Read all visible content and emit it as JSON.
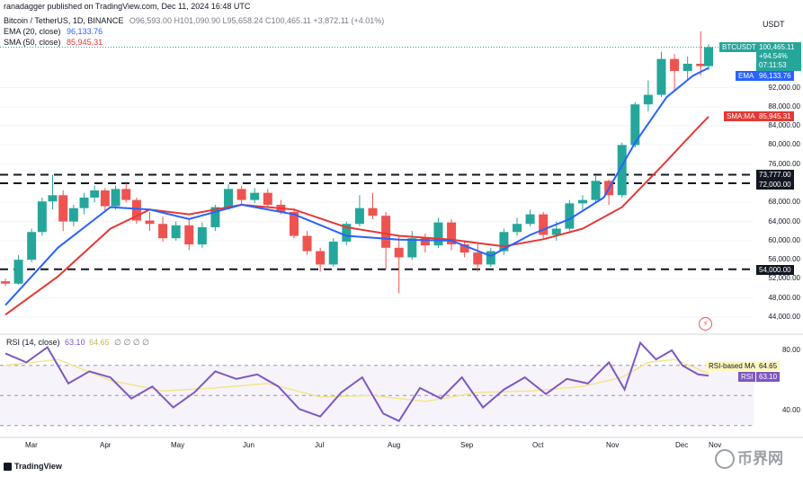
{
  "header": {
    "published": "ranadagger published on TradingView.com, Dec 11, 2024 16:48 UTC",
    "symbol": "Bitcoin / TetherUS, 1D, BINANCE",
    "ohlc": "O96,593.00 H101,090.90 L95,658.24 C100,465.11 +3,872.11 (+4.01%)",
    "ema_legend": "EMA (20, close)",
    "ema_value": "96,133.76",
    "sma_legend": "SMA (50, close)",
    "sma_value": "85,945.31",
    "rsi_legend": "RSI (14, close)",
    "rsi_value": "63.10",
    "rsi_ma_value": "64.65",
    "extra_icons": "∅ ∅ ∅ ∅"
  },
  "axis": {
    "currency": "USDT",
    "price_ticks": [
      "92,000.00",
      "88,000.00",
      "84,000.00",
      "80,000.00",
      "76,000.00",
      "68,000.00",
      "64,000.00",
      "60,000.00",
      "56,000.00",
      "52,000.00",
      "48,000.00",
      "44,000.00"
    ],
    "rsi_ticks": [
      "80.00",
      "40.00"
    ],
    "months": [
      "Mar",
      "Apr",
      "May",
      "Jun",
      "Jul",
      "Aug",
      "Sep",
      "Oct",
      "Nov",
      "Dec",
      "Nov"
    ]
  },
  "tags": {
    "price_symbol": "BTCUSDT",
    "price_value": "100,465.11",
    "price_change": "+94.54%",
    "countdown": "07:11:53",
    "ema_name": "EMA",
    "ema_value": "96,133.76",
    "sma_name": "SMA:MA",
    "sma_value": "85,945.31",
    "level_1": "73,777.00",
    "level_2": "72,000.00",
    "level_3": "54,000.00",
    "rsi_ma_name": "RSI-based MA",
    "rsi_ma_value": "64.65",
    "rsi_name": "RSI",
    "rsi_value": "63.10"
  },
  "footer": {
    "brand": "TradingView",
    "watermark": "币界网"
  },
  "colors": {
    "up": "#26a69a",
    "down": "#ef5350",
    "ema": "#2962ff",
    "sma": "#e53935",
    "rsi": "#7e57c2",
    "rsi_ma": "#f4e58b",
    "level": "#131722",
    "price_tag": "#26a69a"
  },
  "chart_data": [
    {
      "type": "line",
      "title": "Bitcoin / TetherUS, 1D, BINANCE",
      "x": [
        "Mar",
        "Apr",
        "May",
        "Jun",
        "Jul",
        "Aug",
        "Sep",
        "Oct",
        "Nov",
        "Dec"
      ],
      "y_axis": {
        "min": 44000,
        "max": 104000,
        "scale": "linear",
        "unit": "USDT"
      },
      "horizontal_levels": [
        73777,
        72000,
        54000
      ],
      "series": [
        {
          "name": "BTCUSDT",
          "style": "candles",
          "values": [
            [
              0,
              51500,
              52000,
              50500,
              51000
            ],
            [
              5,
              51000,
              57000,
              50800,
              56000
            ],
            [
              10,
              56000,
              62500,
              55500,
              61800
            ],
            [
              14,
              61800,
              69000,
              61000,
              68200
            ],
            [
              18,
              68200,
              73777,
              66500,
              69500
            ],
            [
              22,
              69500,
              70500,
              62000,
              64000
            ],
            [
              26,
              64000,
              67500,
              63000,
              66800
            ],
            [
              30,
              66800,
              70000,
              65500,
              69000
            ],
            [
              34,
              69000,
              71500,
              68000,
              70500
            ],
            [
              38,
              70500,
              71000,
              66000,
              67200
            ],
            [
              42,
              67200,
              71500,
              66500,
              70800
            ],
            [
              46,
              70800,
              72000,
              68000,
              68500
            ],
            [
              50,
              68500,
              69000,
              63500,
              64200
            ],
            [
              55,
              64200,
              66000,
              62000,
              63500
            ],
            [
              60,
              63500,
              65000,
              59800,
              60500
            ],
            [
              65,
              60500,
              64000,
              60000,
              63200
            ],
            [
              70,
              63200,
              64500,
              58000,
              59200
            ],
            [
              75,
              59200,
              63800,
              58500,
              62800
            ],
            [
              80,
              62800,
              67500,
              62000,
              67000
            ],
            [
              85,
              67000,
              71800,
              66500,
              70800
            ],
            [
              90,
              70800,
              71500,
              67500,
              68500
            ],
            [
              95,
              68500,
              71000,
              67800,
              70000
            ],
            [
              100,
              70000,
              70800,
              67000,
              67500
            ],
            [
              105,
              67500,
              68500,
              65500,
              66000
            ],
            [
              110,
              66000,
              66800,
              60500,
              61000
            ],
            [
              115,
              61000,
              62000,
              57000,
              57800
            ],
            [
              120,
              57800,
              58500,
              53500,
              55000
            ],
            [
              125,
              55000,
              60500,
              54500,
              59800
            ],
            [
              130,
              59800,
              64000,
              59000,
              63500
            ],
            [
              135,
              63500,
              69500,
              63000,
              66800
            ],
            [
              140,
              66800,
              70000,
              64500,
              65200
            ],
            [
              145,
              65200,
              66000,
              54000,
              58500
            ],
            [
              150,
              58500,
              61000,
              49000,
              56500
            ],
            [
              155,
              56500,
              62000,
              56000,
              60500
            ],
            [
              160,
              60500,
              61500,
              57500,
              59000
            ],
            [
              165,
              59000,
              64800,
              58500,
              63800
            ],
            [
              170,
              63800,
              64500,
              58000,
              59200
            ],
            [
              175,
              59200,
              59800,
              56500,
              57500
            ],
            [
              180,
              57500,
              59500,
              53500,
              55000
            ],
            [
              185,
              55000,
              58500,
              54500,
              57800
            ],
            [
              190,
              57800,
              62500,
              57000,
              61800
            ],
            [
              195,
              61800,
              64800,
              61000,
              63500
            ],
            [
              200,
              63500,
              66500,
              63000,
              65500
            ],
            [
              205,
              65500,
              66000,
              60500,
              61200
            ],
            [
              210,
              61200,
              64000,
              60000,
              62500
            ],
            [
              215,
              62500,
              68500,
              62000,
              67800
            ],
            [
              220,
              67800,
              69500,
              66500,
              68500
            ],
            [
              225,
              68500,
              73500,
              67800,
              72500
            ],
            [
              230,
              72500,
              72800,
              67500,
              69500
            ],
            [
              235,
              69500,
              80500,
              69000,
              80000
            ],
            [
              240,
              80000,
              89000,
              79500,
              88500
            ],
            [
              245,
              88500,
              93500,
              87000,
              90500
            ],
            [
              250,
              90500,
              99500,
              90000,
              98000
            ],
            [
              255,
              98000,
              99000,
              91500,
              95500
            ],
            [
              260,
              95500,
              98500,
              93500,
              97000
            ],
            [
              265,
              97000,
              103800,
              94500,
              96500
            ],
            [
              268,
              96500,
              101090,
              95658,
              100465
            ]
          ]
        },
        {
          "name": "EMA",
          "values": [
            [
              0,
              46500
            ],
            [
              20,
              58500
            ],
            [
              40,
              67000
            ],
            [
              55,
              66500
            ],
            [
              70,
              64500
            ],
            [
              90,
              67500
            ],
            [
              110,
              65500
            ],
            [
              130,
              61000
            ],
            [
              150,
              60200
            ],
            [
              170,
              60000
            ],
            [
              185,
              56800
            ],
            [
              200,
              61200
            ],
            [
              215,
              64500
            ],
            [
              228,
              69000
            ],
            [
              240,
              80500
            ],
            [
              252,
              90000
            ],
            [
              262,
              94500
            ],
            [
              268,
              96133
            ]
          ]
        },
        {
          "name": "SMA",
          "values": [
            [
              0,
              44500
            ],
            [
              20,
              52500
            ],
            [
              40,
              62500
            ],
            [
              55,
              66500
            ],
            [
              70,
              65500
            ],
            [
              90,
              67500
            ],
            [
              110,
              66500
            ],
            [
              130,
              62800
            ],
            [
              150,
              61000
            ],
            [
              170,
              60200
            ],
            [
              190,
              58800
            ],
            [
              205,
              60300
            ],
            [
              220,
              62500
            ],
            [
              235,
              67000
            ],
            [
              250,
              75500
            ],
            [
              262,
              82500
            ],
            [
              268,
              85945
            ]
          ]
        }
      ]
    },
    {
      "type": "line",
      "title": "RSI (14, close)",
      "x": [
        "Mar",
        "Apr",
        "May",
        "Jun",
        "Jul",
        "Aug",
        "Sep",
        "Oct",
        "Nov",
        "Dec"
      ],
      "y_axis": {
        "min": 25,
        "max": 90,
        "ticks": [
          80,
          40
        ]
      },
      "series": [
        {
          "name": "RSI",
          "values": [
            [
              0,
              78
            ],
            [
              8,
              72
            ],
            [
              16,
              82
            ],
            [
              24,
              58
            ],
            [
              32,
              66
            ],
            [
              40,
              62
            ],
            [
              48,
              48
            ],
            [
              56,
              56
            ],
            [
              64,
              42
            ],
            [
              72,
              52
            ],
            [
              80,
              66
            ],
            [
              88,
              61
            ],
            [
              96,
              64
            ],
            [
              104,
              56
            ],
            [
              112,
              41
            ],
            [
              120,
              36
            ],
            [
              128,
              52
            ],
            [
              136,
              62
            ],
            [
              144,
              38
            ],
            [
              150,
              33
            ],
            [
              158,
              55
            ],
            [
              166,
              48
            ],
            [
              174,
              62
            ],
            [
              182,
              42
            ],
            [
              190,
              54
            ],
            [
              198,
              62
            ],
            [
              206,
              51
            ],
            [
              214,
              61
            ],
            [
              222,
              58
            ],
            [
              230,
              72
            ],
            [
              236,
              54
            ],
            [
              242,
              85
            ],
            [
              248,
              74
            ],
            [
              254,
              80
            ],
            [
              258,
              70
            ],
            [
              264,
              64
            ],
            [
              268,
              63.1
            ]
          ]
        },
        {
          "name": "RSI-based MA",
          "values": [
            [
              0,
              70
            ],
            [
              20,
              74
            ],
            [
              40,
              60
            ],
            [
              60,
              53
            ],
            [
              80,
              55
            ],
            [
              100,
              58
            ],
            [
              120,
              49
            ],
            [
              140,
              50
            ],
            [
              160,
              46
            ],
            [
              180,
              52
            ],
            [
              200,
              53
            ],
            [
              220,
              56
            ],
            [
              235,
              62
            ],
            [
              245,
              72
            ],
            [
              255,
              74
            ],
            [
              268,
              64.65
            ]
          ]
        }
      ]
    }
  ]
}
